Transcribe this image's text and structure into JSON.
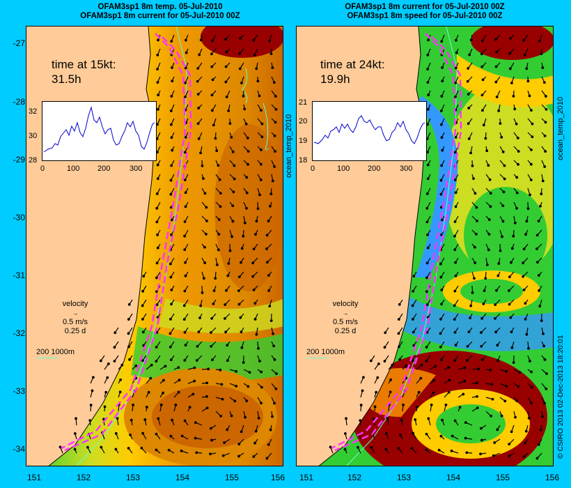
{
  "left_panel": {
    "title_line1": "OFAM3sp1 8m temp. 05-Jul-2010",
    "title_line2": "OFAM3sp1 8m current for 05-Jul-2010 00Z",
    "time_label": "time at 15kt:",
    "time_value": "31.5h",
    "inset_yticks": [
      "32",
      "30",
      "28"
    ],
    "inset_xticks": [
      "0",
      "100",
      "200",
      "300"
    ],
    "side_label": "ocean_temp_2010"
  },
  "right_panel": {
    "title_line1": "OFAM3sp1 8m current for 05-Jul-2010 00Z",
    "title_line2": "OFAM3sp1 8m speed for 05-Jul-2010 00Z",
    "time_label": "time at 24kt:",
    "time_value": "19.9h",
    "inset_yticks": [
      "21",
      "20",
      "19",
      "18"
    ],
    "inset_xticks": [
      "0",
      "100",
      "200",
      "300"
    ],
    "side_label": "ocean_temp_2010"
  },
  "legend": {
    "velocity_label": "velocity",
    "speed": "0.5 m/s",
    "duration": "0.25 d",
    "scale_label": "200  1000m"
  },
  "axes": {
    "y_ticks": [
      "-27",
      "-28",
      "-29",
      "-30",
      "-31",
      "-32",
      "-33",
      "-34"
    ],
    "x_ticks": [
      "151",
      "152",
      "153",
      "154",
      "155",
      "156"
    ]
  },
  "credit": "© CSIRO 2013  02-Dec-2013 18:20:01",
  "colors": {
    "background": "#00ccff",
    "land": "#ffcc99",
    "route": "#ff33ff",
    "isobath": "#66ffcc",
    "warm": "#cc6600",
    "hot": "#990000",
    "mid": "#ffcc00",
    "cool": "#33cc33",
    "cold": "#3399ff"
  }
}
